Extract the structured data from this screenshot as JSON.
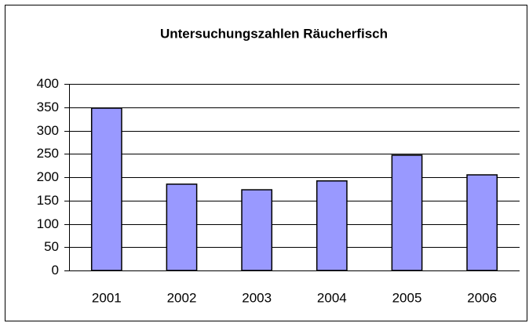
{
  "chart_data": {
    "type": "bar",
    "title": "Untersuchungszahlen Räucherfisch",
    "categories": [
      "2001",
      "2002",
      "2003",
      "2004",
      "2005",
      "2006"
    ],
    "values": [
      348,
      185,
      173,
      192,
      247,
      205
    ],
    "color": "#9999ff",
    "ylim": [
      0,
      400
    ],
    "yticks": [
      0,
      50,
      100,
      150,
      200,
      250,
      300,
      350,
      400
    ],
    "grid": true
  }
}
